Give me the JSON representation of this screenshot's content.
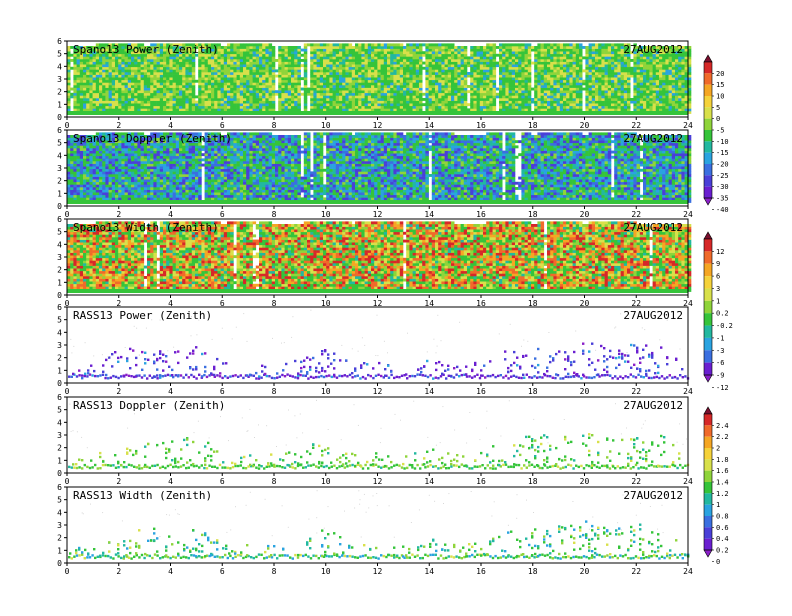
{
  "figure": {
    "date_label": "27AUG2012",
    "x_ticks": [
      0,
      2,
      4,
      6,
      8,
      10,
      12,
      14,
      16,
      18,
      20,
      22,
      24
    ],
    "y_ticks": [
      0,
      1,
      2,
      3,
      4,
      5,
      6
    ]
  },
  "colorbars": [
    {
      "id": "cb-power-doppler-spano",
      "labels": [
        "20",
        "15",
        "10",
        "5",
        "0",
        "-5",
        "-10",
        "-15",
        "-20",
        "-25",
        "-30",
        "-35",
        "-40"
      ],
      "colors": [
        "#7a0f2e",
        "#d62828",
        "#f06a2a",
        "#f5a623",
        "#f5d23a",
        "#d8e04a",
        "#8fd43a",
        "#35c43a",
        "#22b8a0",
        "#2aa3e0",
        "#3a6fe0",
        "#4a3fd8",
        "#6a1fd0",
        "#8a1fc8"
      ]
    },
    {
      "id": "cb-width-rass-power",
      "labels": [
        "12",
        "9",
        "6",
        "3",
        "1",
        "0.2",
        "-0.2",
        "-1",
        "-3",
        "-6",
        "-9",
        "-12"
      ],
      "colors": [
        "#7a0f2e",
        "#d62828",
        "#f06a2a",
        "#f5a623",
        "#f5d23a",
        "#d8e04a",
        "#8fd43a",
        "#35c43a",
        "#22b8a0",
        "#2aa3e0",
        "#3a6fe0",
        "#6a1fd0",
        "#8a1fc8"
      ]
    },
    {
      "id": "cb-rass-doppler-width",
      "labels": [
        "2.4",
        "2.2",
        "2",
        "1.8",
        "1.6",
        "1.4",
        "1.2",
        "1",
        "0.8",
        "0.6",
        "0.4",
        "0.2",
        "0"
      ],
      "colors": [
        "#7a0f2e",
        "#d62828",
        "#f06a2a",
        "#f5a623",
        "#f5d23a",
        "#d8e04a",
        "#8fd43a",
        "#35c43a",
        "#22b8a0",
        "#2aa3e0",
        "#3a6fe0",
        "#4a3fd8",
        "#6a1fd0",
        "#8a1fc8"
      ]
    }
  ],
  "chart_data": [
    {
      "type": "heatmap",
      "title": "Spano13 Power (Zenith)",
      "date": "27AUG2012",
      "xlim": [
        0,
        24
      ],
      "ylim": [
        0,
        6
      ],
      "style": "dense",
      "palette": [
        "#35c43a",
        "#8fd43a",
        "#d8e04a",
        "#22b8a0",
        "#2aa3e0"
      ],
      "weights": [
        5,
        3,
        3,
        1,
        1
      ],
      "x": [
        0,
        1,
        2,
        3,
        4,
        5,
        6,
        7,
        8,
        9,
        10,
        11,
        12,
        13,
        14,
        15,
        16,
        17,
        18,
        19,
        20,
        21,
        22,
        23,
        24
      ],
      "top_km": [
        5.8,
        5.8,
        5.9,
        5.8,
        5.9,
        5.9,
        5.8,
        5.9,
        5.8,
        5.8,
        5.9,
        5.8,
        5.9,
        5.8,
        5.9,
        5.8,
        5.8,
        5.9,
        5.8,
        5.9,
        5.8,
        5.9,
        5.8,
        5.8,
        5.8
      ]
    },
    {
      "type": "heatmap",
      "title": "Spano13 Doppler (Zenith)",
      "date": "27AUG2012",
      "xlim": [
        0,
        24
      ],
      "ylim": [
        0,
        6
      ],
      "style": "dense",
      "palette": [
        "#35c43a",
        "#22b8a0",
        "#2aa3e0",
        "#3a6fe0",
        "#4a3fd8",
        "#8fd43a"
      ],
      "weights": [
        3,
        2,
        2,
        2,
        2,
        1
      ],
      "x": [
        0,
        1,
        2,
        3,
        4,
        5,
        6,
        7,
        8,
        9,
        10,
        11,
        12,
        13,
        14,
        15,
        16,
        17,
        18,
        19,
        20,
        21,
        22,
        23,
        24
      ],
      "top_km": [
        5.8,
        5.8,
        5.9,
        5.8,
        5.9,
        5.9,
        5.8,
        5.9,
        5.8,
        5.8,
        5.9,
        5.8,
        5.9,
        5.8,
        5.9,
        5.8,
        5.8,
        5.9,
        5.8,
        5.9,
        5.8,
        5.9,
        5.8,
        5.8,
        5.8
      ]
    },
    {
      "type": "heatmap",
      "title": "Spano13 Width (Zenith)",
      "date": "27AUG2012",
      "xlim": [
        0,
        24
      ],
      "ylim": [
        0,
        6
      ],
      "style": "dense",
      "palette": [
        "#35c43a",
        "#8fd43a",
        "#d8e04a",
        "#f5a623",
        "#f06a2a",
        "#d62828",
        "#22b8a0"
      ],
      "weights": [
        3,
        2,
        2,
        2,
        2,
        2,
        1
      ],
      "x": [
        0,
        1,
        2,
        3,
        4,
        5,
        6,
        7,
        8,
        9,
        10,
        11,
        12,
        13,
        14,
        15,
        16,
        17,
        18,
        19,
        20,
        21,
        22,
        23,
        24
      ],
      "top_km": [
        5.8,
        5.8,
        5.9,
        5.8,
        5.9,
        5.9,
        5.8,
        5.9,
        5.8,
        5.8,
        5.9,
        5.8,
        5.9,
        5.8,
        5.9,
        5.8,
        5.8,
        5.9,
        5.8,
        5.9,
        5.8,
        5.9,
        5.8,
        5.8,
        5.8
      ]
    },
    {
      "type": "heatmap",
      "title": "RASS13 Power (Zenith)",
      "date": "27AUG2012",
      "xlim": [
        0,
        24
      ],
      "ylim": [
        0,
        6
      ],
      "style": "sparse",
      "palette": [
        "#6a1fd0",
        "#4a3fd8",
        "#3a6fe0",
        "#2aa3e0",
        "#8a1fc8"
      ],
      "weights": [
        4,
        3,
        2,
        1,
        1
      ],
      "x": [
        0,
        1,
        2,
        3,
        4,
        5,
        6,
        7,
        8,
        9,
        10,
        11,
        12,
        13,
        14,
        15,
        16,
        17,
        18,
        19,
        20,
        21,
        22,
        23,
        24
      ],
      "top_km": [
        1.2,
        1.5,
        2.8,
        3.0,
        2.6,
        3.0,
        1.8,
        1.5,
        1.6,
        2.0,
        3.0,
        1.6,
        1.8,
        1.4,
        2.0,
        1.5,
        1.8,
        2.8,
        3.2,
        3.0,
        3.4,
        2.8,
        3.2,
        3.0,
        1.2
      ],
      "base_km": 0.6
    },
    {
      "type": "heatmap",
      "title": "RASS13 Doppler (Zenith)",
      "date": "27AUG2012",
      "xlim": [
        0,
        24
      ],
      "ylim": [
        0,
        6
      ],
      "style": "sparse",
      "palette": [
        "#35c43a",
        "#8fd43a",
        "#22b8a0",
        "#d8e04a"
      ],
      "weights": [
        5,
        3,
        1,
        1
      ],
      "x": [
        0,
        1,
        2,
        3,
        4,
        5,
        6,
        7,
        8,
        9,
        10,
        11,
        12,
        13,
        14,
        15,
        16,
        17,
        18,
        19,
        20,
        21,
        22,
        23,
        24
      ],
      "top_km": [
        1.2,
        1.5,
        2.8,
        3.0,
        2.6,
        3.0,
        1.8,
        1.5,
        1.6,
        2.0,
        3.0,
        1.6,
        1.8,
        1.4,
        2.0,
        1.5,
        1.8,
        2.8,
        3.2,
        3.0,
        3.4,
        2.8,
        3.2,
        3.0,
        1.2
      ],
      "base_km": 0.6
    },
    {
      "type": "heatmap",
      "title": "RASS13 Width (Zenith)",
      "date": "27AUG2012",
      "xlim": [
        0,
        24
      ],
      "ylim": [
        0,
        6
      ],
      "style": "sparse",
      "palette": [
        "#35c43a",
        "#22b8a0",
        "#2aa3e0",
        "#8fd43a",
        "#d8e04a"
      ],
      "weights": [
        4,
        3,
        2,
        2,
        1
      ],
      "x": [
        0,
        1,
        2,
        3,
        4,
        5,
        6,
        7,
        8,
        9,
        10,
        11,
        12,
        13,
        14,
        15,
        16,
        17,
        18,
        19,
        20,
        21,
        22,
        23,
        24
      ],
      "top_km": [
        1.2,
        1.5,
        2.8,
        3.0,
        2.6,
        3.0,
        1.8,
        1.5,
        1.6,
        2.0,
        3.0,
        1.6,
        1.8,
        1.4,
        2.0,
        1.5,
        1.8,
        2.8,
        3.2,
        3.0,
        3.4,
        2.8,
        3.2,
        3.0,
        1.2
      ],
      "base_km": 0.6
    }
  ]
}
